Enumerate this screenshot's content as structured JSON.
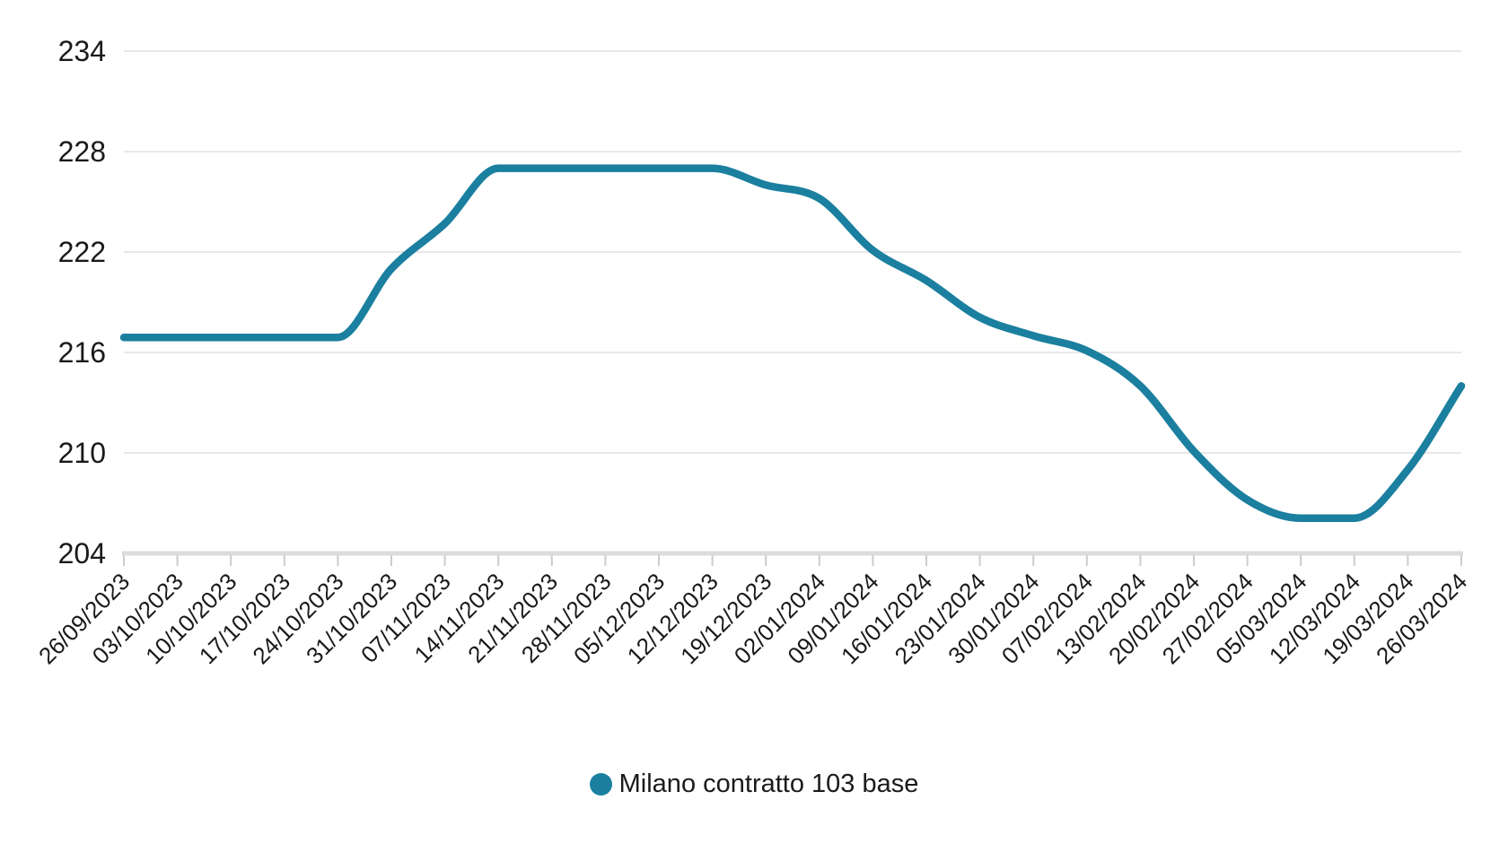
{
  "chart": {
    "background_color": "#ffffff",
    "text_color": "#1a1a1a",
    "gridline_color": "#e8e8e8",
    "axis_line_color": "#dcdcdc",
    "tick_color": "#cccccc"
  },
  "legend": {
    "marker_color": "#1b7f9f"
  },
  "chart_data": {
    "type": "line",
    "title": "",
    "xlabel": "",
    "ylabel": "",
    "categories": [
      "26/09/2023",
      "03/10/2023",
      "10/10/2023",
      "17/10/2023",
      "24/10/2023",
      "31/10/2023",
      "07/11/2023",
      "14/11/2023",
      "21/11/2023",
      "28/11/2023",
      "05/12/2023",
      "12/12/2023",
      "19/12/2023",
      "02/01/2024",
      "09/01/2024",
      "16/01/2024",
      "23/01/2024",
      "30/01/2024",
      "07/02/2024",
      "13/02/2024",
      "20/02/2024",
      "27/02/2024",
      "05/03/2024",
      "12/03/2024",
      "19/03/2024",
      "26/03/2024"
    ],
    "series": [
      {
        "name": "Milano contratto 103 base",
        "color": "#1b7f9f",
        "values": [
          216.9,
          216.9,
          216.9,
          216.9,
          216.9,
          221.0,
          223.7,
          227.0,
          227.0,
          227.0,
          227.0,
          227.0,
          226.0,
          225.2,
          222.1,
          220.3,
          218.1,
          217.0,
          216.1,
          214.0,
          210.1,
          207.2,
          206.1,
          206.1,
          209.0,
          214.0
        ]
      }
    ],
    "ylim": [
      204,
      234
    ],
    "yticks": [
      204,
      210,
      216,
      222,
      228,
      234
    ],
    "grid": true,
    "line_smoothing": true,
    "legend_position": "bottom"
  }
}
